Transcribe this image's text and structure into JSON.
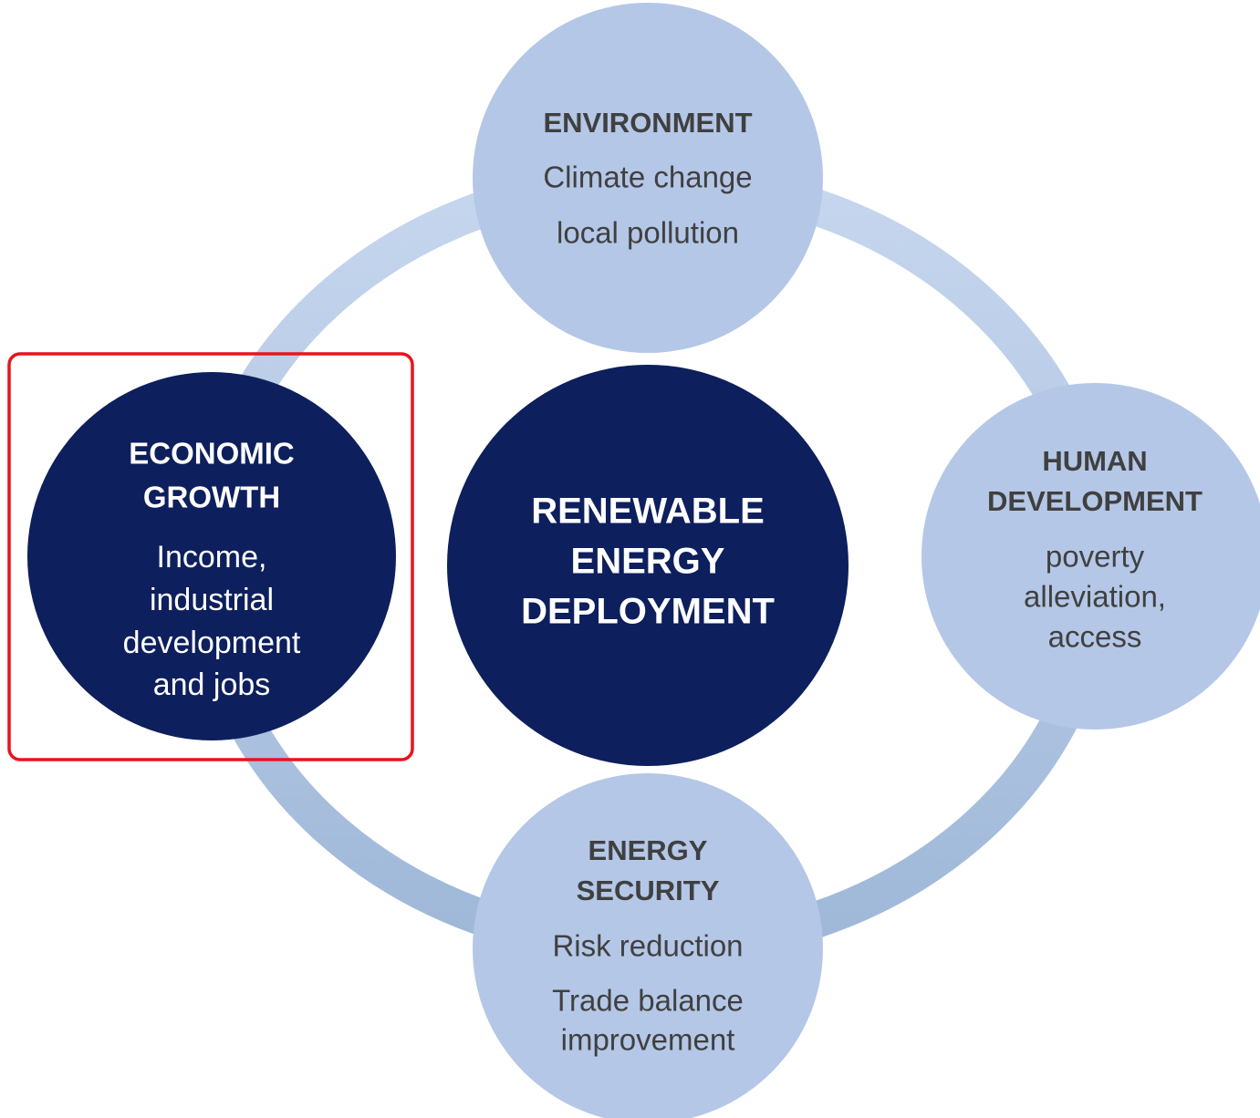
{
  "nodes": [
    {
      "title": [
        "ENVIRONMENT"
      ],
      "lines": [
        "Climate change",
        "local pollution"
      ]
    },
    {
      "title": [
        "ECONOMIC",
        "GROWTH"
      ],
      "lines": [
        "Income,",
        "industrial",
        "development",
        "and jobs"
      ]
    },
    {
      "title": [
        "RENEWABLE",
        "ENERGY",
        "DEPLOYMENT"
      ],
      "lines": []
    },
    {
      "title": [
        "HUMAN",
        "DEVELOPMENT"
      ],
      "lines": [
        "poverty",
        "alleviation,",
        "access"
      ]
    },
    {
      "title": [
        "ENERGY",
        "SECURITY"
      ],
      "lines": [
        "Risk reduction",
        "Trade balance",
        "improvement"
      ]
    }
  ]
}
